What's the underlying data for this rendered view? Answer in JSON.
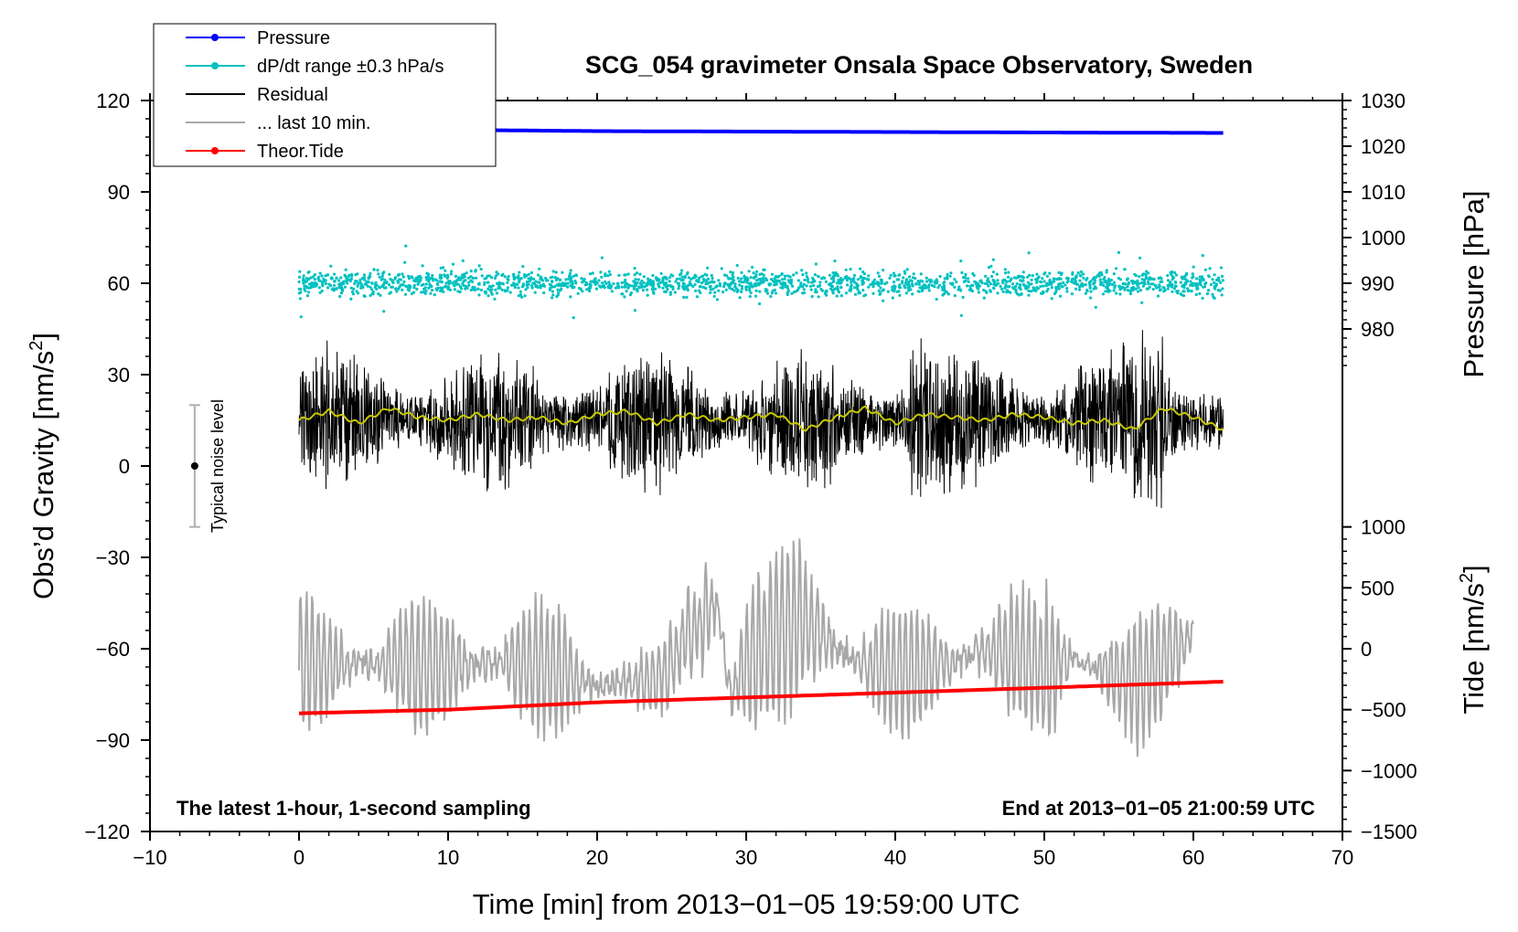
{
  "chart_data": {
    "type": "line",
    "title": "SCG_054 gravimeter Onsala Space Observatory, Sweden",
    "xlabel": "Time [min] from 2013−01−05 19:59:00 UTC",
    "ylabel_left_main": "Obs’d Gravity [nm/s",
    "ylabel_left_sup": "2",
    "ylabel_left_end": "]",
    "ylabel_right_pressure": "Pressure [hPa]",
    "ylabel_right_tide_main": "Tide [nm/s",
    "ylabel_right_tide_sup": "2",
    "ylabel_right_tide_end": "]",
    "xlim": [
      -10,
      70
    ],
    "ylim_gravity": [
      -120,
      120
    ],
    "ylim_pressure": [
      970,
      1030
    ],
    "ylim_tide": [
      -1500,
      1000
    ],
    "x_ticks": [
      -10,
      0,
      10,
      20,
      30,
      40,
      50,
      60,
      70
    ],
    "x_tick_labels": [
      "−10",
      "0",
      "10",
      "20",
      "30",
      "40",
      "50",
      "60",
      "70"
    ],
    "y_ticks_gravity": [
      120,
      90,
      60,
      30,
      0,
      -30,
      -60,
      -90,
      -120
    ],
    "y_tick_labels_gravity": [
      "120",
      "90",
      "60",
      "30",
      "0",
      "−30",
      "−60",
      "−90",
      "−120"
    ],
    "y_ticks_pressure": [
      1030,
      1020,
      1010,
      1000,
      990,
      980
    ],
    "y_tick_labels_pressure": [
      "1030",
      "1020",
      "1010",
      "1000",
      "990",
      "980"
    ],
    "y_ticks_tide": [
      1000,
      500,
      0,
      -500,
      -1000,
      -1500
    ],
    "y_tick_labels_tide": [
      "1000",
      "500",
      "0",
      "−500",
      "−1000",
      "−1500"
    ],
    "legend": [
      {
        "label": "Pressure",
        "color": "#0000ff",
        "marker": "dot"
      },
      {
        "label": "dP/dt range ±0.3 hPa/s",
        "color": "#00c0c0",
        "marker": "dot"
      },
      {
        "label": "Residual",
        "color": "#000000",
        "marker": "none"
      },
      {
        "label": "... last 10 min.",
        "color": "#a8a8a8",
        "marker": "none"
      },
      {
        "label": "Theor.Tide",
        "color": "#ff0000",
        "marker": "dot"
      }
    ],
    "annotations": {
      "left": "The latest 1-hour, 1-second sampling",
      "right": "End at 2013−01−05 21:00:59 UTC"
    },
    "noise_level": {
      "label": "Typical noise level",
      "x": -7,
      "center": 0,
      "half_range": 20
    },
    "series": [
      {
        "name": "Pressure",
        "axis": "pressure",
        "color": "#0000ff",
        "x": [
          13,
          20,
          30,
          40,
          50,
          62
        ],
        "values": [
          1023.5,
          1023.3,
          1023.2,
          1023.1,
          1023.0,
          1022.9
        ]
      },
      {
        "name": "dP/dt range ±0.3 hPa/s",
        "axis": "gravity",
        "color": "#00c0c0",
        "x_range": [
          0,
          62
        ],
        "center": 60,
        "spread": 4
      },
      {
        "name": "Residual",
        "axis": "gravity",
        "color": "#000000",
        "x_range": [
          0,
          62
        ],
        "center": 15,
        "spread": 35
      },
      {
        "name": "Residual (smoothed)",
        "axis": "gravity",
        "color": "#c8c800",
        "x": [
          0,
          2,
          4,
          6,
          8,
          10,
          12,
          14,
          16,
          18,
          20,
          22,
          24,
          26,
          28,
          30,
          32,
          34,
          36,
          38,
          40,
          42,
          44,
          46,
          48,
          50,
          52,
          54,
          56,
          58,
          60,
          62
        ],
        "values": [
          15,
          18,
          14,
          19,
          16,
          15,
          17,
          15,
          16,
          14,
          17,
          18,
          14,
          17,
          15,
          16,
          17,
          12,
          16,
          19,
          14,
          17,
          16,
          15,
          17,
          16,
          14,
          15,
          12,
          19,
          16,
          12
        ]
      },
      {
        "name": "... last 10 min.",
        "axis": "gravity",
        "color": "#a8a8a8",
        "x": [
          0,
          4,
          8,
          12,
          16,
          20,
          24,
          28,
          29,
          30,
          32,
          34,
          36,
          40,
          44,
          48,
          50,
          52,
          56,
          60
        ],
        "values": [
          -65,
          -65,
          -65,
          -65,
          -65,
          -72,
          -70,
          -45,
          -75,
          -65,
          -55,
          -50,
          -60,
          -68,
          -64,
          -60,
          -68,
          -62,
          -72,
          -55
        ]
      },
      {
        "name": "Theor.Tide",
        "axis": "tide",
        "color": "#ff0000",
        "x": [
          0,
          10,
          20,
          30,
          40,
          50,
          62
        ],
        "values": [
          -530,
          -500,
          -440,
          -400,
          -360,
          -320,
          -270
        ]
      }
    ]
  }
}
